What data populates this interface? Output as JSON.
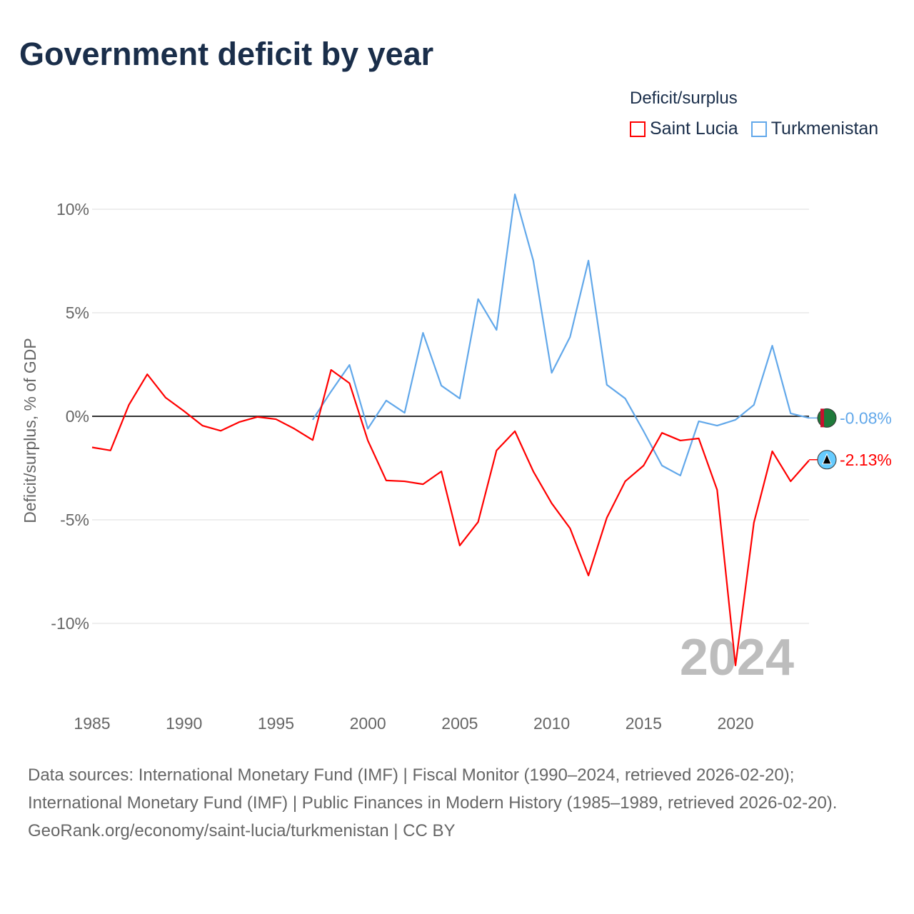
{
  "title": "Government deficit by year",
  "footer": {
    "sources": "Data sources: International Monetary Fund (IMF) | Fiscal Monitor (1990–2024, retrieved 2026-02-20); International Monetary Fund (IMF) | Public Finances in Modern History (1985–1989, retrieved 2026-02-20).",
    "credit": "GeoRank.org/economy/saint-lucia/turkmenistan | CC BY"
  },
  "chart_data": {
    "type": "line",
    "title": "Government deficit by year",
    "ylabel": "Deficit/surplus, % of GDP",
    "xlabel": "",
    "legend_title": "Deficit/surplus",
    "legend_position": "top-right",
    "xlim": [
      1985,
      2024
    ],
    "ylim": [
      -12.5,
      11
    ],
    "x_ticks": [
      1985,
      1990,
      1995,
      2000,
      2005,
      2010,
      2015,
      2020
    ],
    "x_tick_labels": [
      "1985",
      "1990",
      "1995",
      "2000",
      "2005",
      "2010",
      "2015",
      "2020"
    ],
    "y_ticks": [
      10,
      5,
      0,
      -5,
      -10
    ],
    "y_tick_labels": [
      "10%",
      "5%",
      "0%",
      "-5%",
      "-10%"
    ],
    "year_watermark": "2024",
    "series": [
      {
        "name": "Saint Lucia",
        "color": "#ff0000",
        "end_label": "-2.13%",
        "x": [
          1985,
          1986,
          1987,
          1988,
          1989,
          1990,
          1991,
          1992,
          1993,
          1994,
          1995,
          1996,
          1997,
          1998,
          1999,
          2000,
          2001,
          2002,
          2003,
          2004,
          2005,
          2006,
          2007,
          2008,
          2009,
          2010,
          2011,
          2012,
          2013,
          2014,
          2015,
          2016,
          2017,
          2018,
          2019,
          2020,
          2021,
          2022,
          2023,
          2024
        ],
        "values": [
          -1.5,
          -1.65,
          0.55,
          2.03,
          0.9,
          0.25,
          -0.45,
          -0.7,
          -0.28,
          -0.03,
          -0.14,
          -0.6,
          -1.15,
          2.24,
          1.6,
          -1.17,
          -3.1,
          -3.14,
          -3.28,
          -2.66,
          -6.24,
          -5.1,
          -1.65,
          -0.72,
          -2.66,
          -4.2,
          -5.41,
          -7.69,
          -4.9,
          -3.14,
          -2.38,
          -0.8,
          -1.17,
          -1.07,
          -3.55,
          -12.03,
          -5.14,
          -1.69,
          -3.14,
          -2.13
        ]
      },
      {
        "name": "Turkmenistan",
        "color": "#62a8ea",
        "end_label": "-0.08%",
        "x": [
          1997,
          1998,
          1999,
          2000,
          2001,
          2002,
          2003,
          2004,
          2005,
          2006,
          2007,
          2008,
          2009,
          2010,
          2011,
          2012,
          2013,
          2014,
          2015,
          2016,
          2017,
          2018,
          2019,
          2020,
          2021,
          2022,
          2023,
          2024
        ],
        "values": [
          -0.17,
          1.2,
          2.48,
          -0.6,
          0.76,
          0.17,
          4.03,
          1.48,
          0.86,
          5.66,
          4.17,
          10.72,
          7.52,
          2.1,
          3.83,
          7.52,
          1.52,
          0.86,
          -0.72,
          -2.38,
          -2.86,
          -0.24,
          -0.45,
          -0.17,
          0.55,
          3.41,
          0.14,
          -0.08
        ]
      }
    ]
  }
}
